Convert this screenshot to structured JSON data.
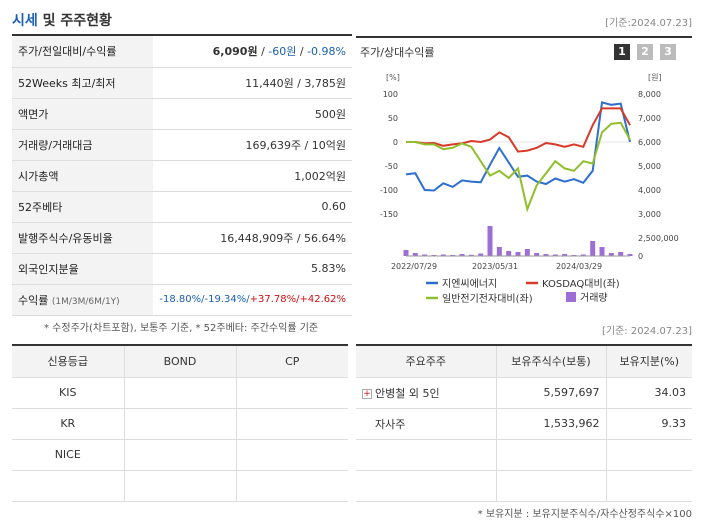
{
  "header": {
    "title_accent": "시세",
    "title_rest": " 및 주주현황",
    "base_date": "[기준:2024.07.23]"
  },
  "info": {
    "rows": [
      {
        "label": "주가/전일대비/수익률"
      },
      {
        "label": "52Weeks 최고/최저",
        "value": "11,440원 / 3,785원"
      },
      {
        "label": "액면가",
        "value": "500원"
      },
      {
        "label": "거래량/거래대금",
        "value": "169,639주 / 10억원"
      },
      {
        "label": "시가총액",
        "value": "1,002억원"
      },
      {
        "label": "52주베타",
        "value": "0.60"
      },
      {
        "label": "발행주식수/유동비율",
        "value": "16,448,909주 / 56.64%"
      },
      {
        "label": "외국인지분율",
        "value": "5.83%"
      },
      {
        "label": "수익률",
        "label_sub": "(1M/3M/6M/1Y)"
      }
    ],
    "price": "6,090원",
    "change": "-60원",
    "change_pct": "-0.98%",
    "sep": " / ",
    "returns": [
      "-18.80%/",
      "-19.34%/",
      "+37.78%/",
      "+42.62%"
    ]
  },
  "note1": "* 수정주가(차트포함), 보통주 기준, * 52주베타: 주간수익률 기준",
  "chart": {
    "heading": "주가/상대수익률",
    "pages": [
      "1",
      "2",
      "3"
    ],
    "left_unit": "[%]",
    "right_unit": "[원]",
    "legend": [
      "지엔씨에너지",
      "KOSDAQ대비(좌)",
      "일반전기전자대비(좌)",
      "거래량"
    ],
    "colors": {
      "price": "#2f6fcf",
      "kosdaq": "#d83a2a",
      "sector": "#8fbf2a",
      "volume": "#9d6fd6"
    }
  },
  "chart_data": {
    "type": "line",
    "x_ticks": [
      "2022/07/29",
      "2023/05/31",
      "2024/03/29"
    ],
    "left_axis": {
      "ticks": [
        "100",
        "50",
        "0",
        "-50",
        "-100",
        "-150"
      ],
      "ylim": [
        -150,
        100
      ]
    },
    "right_axis": {
      "ticks": [
        "8,000",
        "7,000",
        "6,000",
        "5,000",
        "4,000",
        "3,000"
      ],
      "ylim": [
        3000,
        8000
      ]
    },
    "volume_axis": {
      "ticks": [
        "2,500,000",
        "0"
      ]
    },
    "series": [
      {
        "name": "지엔씨에너지",
        "axis": "right",
        "values": [
          4650,
          4700,
          4000,
          3980,
          4280,
          4130,
          4400,
          4350,
          4320,
          5050,
          5750,
          5150,
          4550,
          4600,
          4350,
          4250,
          4480,
          4350,
          4450,
          4300,
          4800,
          7650,
          7550,
          7600,
          6000
        ]
      },
      {
        "name": "KOSDAQ대비(좌)",
        "axis": "left",
        "values": [
          0,
          0,
          -3,
          -2,
          -8,
          -5,
          -3,
          2,
          0,
          5,
          20,
          10,
          -20,
          -18,
          -12,
          -2,
          -5,
          -10,
          -5,
          -10,
          35,
          70,
          70,
          70,
          35
        ]
      },
      {
        "name": "일반전기전자대비(좌)",
        "axis": "left",
        "values": [
          0,
          0,
          -5,
          -5,
          -15,
          -12,
          -3,
          -10,
          -40,
          -70,
          -60,
          -75,
          -55,
          -140,
          -90,
          -65,
          -40,
          -55,
          -60,
          -40,
          -45,
          20,
          38,
          40,
          5
        ]
      }
    ],
    "volume": [
      600000,
      300000,
      150000,
      100000,
      150000,
      100000,
      200000,
      120000,
      250000,
      3000000,
      900000,
      500000,
      400000,
      700000,
      300000,
      200000,
      150000,
      200000,
      100000,
      150000,
      1500000,
      900000,
      300000,
      400000,
      200000
    ]
  },
  "note2": "[기준: 2024.07.23]",
  "credit": {
    "headers": [
      "신용등급",
      "BOND",
      "CP"
    ],
    "rows": [
      [
        "KIS",
        "",
        ""
      ],
      [
        "KR",
        "",
        ""
      ],
      [
        "NICE",
        "",
        ""
      ],
      [
        "",
        "",
        ""
      ]
    ]
  },
  "holders": {
    "headers": [
      "주요주주",
      "보유주식수(보통)",
      "보유지분(%)"
    ],
    "rows": [
      {
        "name": "안병철 외 5인",
        "shares": "5,597,697",
        "pct": "34.03",
        "expandable": true
      },
      {
        "name": "자사주",
        "shares": "1,533,962",
        "pct": "9.33",
        "expandable": false
      }
    ]
  },
  "note3": "* 보유지분 : 보유지분주식수/자수산정주식수×100"
}
